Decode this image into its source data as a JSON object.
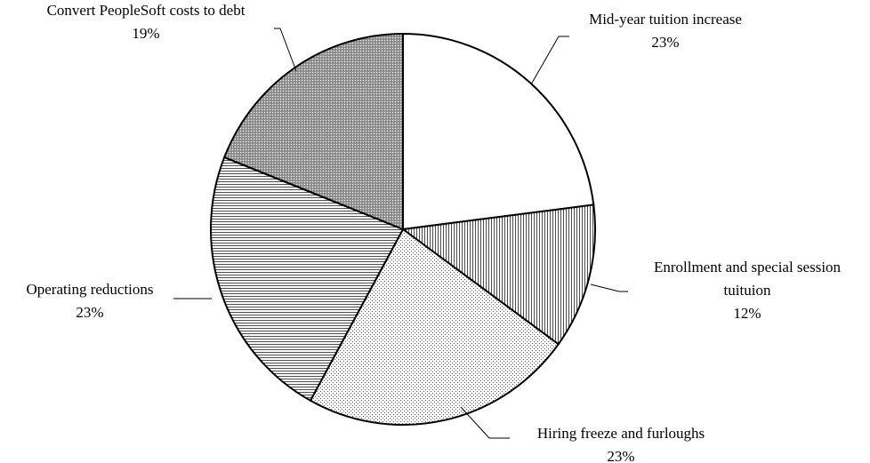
{
  "chart_data": {
    "type": "pie",
    "title": "",
    "slices": [
      {
        "label_lines": [
          "Mid-year tuition increase"
        ],
        "value_label": "23%",
        "value": 23,
        "pattern": "none",
        "color": "#ffffff"
      },
      {
        "label_lines": [
          "Enrollment and special session",
          "tuituion"
        ],
        "value_label": "12%",
        "value": 12,
        "pattern": "vertical-lines",
        "color": "#ffffff"
      },
      {
        "label_lines": [
          "Hiring freeze and furloughs"
        ],
        "value_label": "23%",
        "value": 23,
        "pattern": "light-dots",
        "color": "#ffffff"
      },
      {
        "label_lines": [
          "Operating reductions"
        ],
        "value_label": "23%",
        "value": 23,
        "pattern": "horizontal-lines",
        "color": "#ffffff"
      },
      {
        "label_lines": [
          "Convert PeopleSoft costs to debt"
        ],
        "value_label": "19%",
        "value": 19,
        "pattern": "dense-dots",
        "color": "#9a9a9a"
      }
    ],
    "start_angle_deg": 0,
    "direction": "clockwise",
    "legend": "none"
  }
}
